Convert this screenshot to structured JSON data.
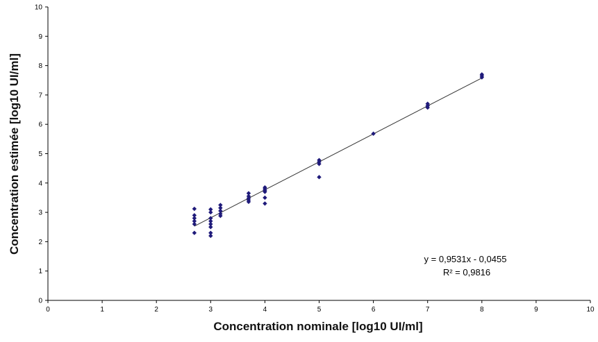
{
  "chart_data": {
    "type": "scatter",
    "title": "",
    "xlabel": "Concentration nominale [log10  UI/ml]",
    "ylabel": "Concentration estimée [log10 UI/ml]",
    "xlim": [
      0,
      10
    ],
    "ylim": [
      0,
      10
    ],
    "xticks": [
      "0",
      "1",
      "2",
      "3",
      "4",
      "5",
      "6",
      "7",
      "8",
      "9",
      "10"
    ],
    "yticks": [
      "0",
      "1",
      "2",
      "3",
      "4",
      "5",
      "6",
      "7",
      "8",
      "9",
      "10"
    ],
    "grid": false,
    "marker_color": "#1f1a7a",
    "points": [
      [
        2.7,
        3.12
      ],
      [
        2.7,
        2.9
      ],
      [
        2.7,
        2.8
      ],
      [
        2.7,
        2.7
      ],
      [
        2.7,
        2.6
      ],
      [
        2.7,
        2.3
      ],
      [
        3.0,
        3.1
      ],
      [
        3.0,
        3.0
      ],
      [
        3.0,
        2.8
      ],
      [
        3.0,
        2.7
      ],
      [
        3.0,
        2.6
      ],
      [
        3.0,
        2.5
      ],
      [
        3.0,
        2.3
      ],
      [
        3.0,
        2.2
      ],
      [
        3.18,
        3.25
      ],
      [
        3.18,
        3.15
      ],
      [
        3.18,
        3.05
      ],
      [
        3.18,
        2.95
      ],
      [
        3.18,
        2.88
      ],
      [
        3.7,
        3.65
      ],
      [
        3.7,
        3.55
      ],
      [
        3.7,
        3.48
      ],
      [
        3.7,
        3.42
      ],
      [
        3.7,
        3.36
      ],
      [
        4.0,
        3.85
      ],
      [
        4.0,
        3.8
      ],
      [
        4.0,
        3.75
      ],
      [
        4.0,
        3.7
      ],
      [
        4.0,
        3.5
      ],
      [
        4.0,
        3.3
      ],
      [
        5.0,
        4.78
      ],
      [
        5.0,
        4.72
      ],
      [
        5.0,
        4.65
      ],
      [
        5.0,
        4.2
      ],
      [
        6.0,
        5.68
      ],
      [
        7.0,
        6.7
      ],
      [
        7.0,
        6.63
      ],
      [
        7.0,
        6.57
      ],
      [
        8.0,
        7.7
      ],
      [
        8.0,
        7.65
      ],
      [
        8.0,
        7.6
      ]
    ],
    "trendline": {
      "slope": 0.9531,
      "intercept": -0.0455,
      "x_range": [
        2.7,
        8.0
      ],
      "equation": "y = 0,9531x - 0,0455",
      "r2": "R² = 0,9816"
    }
  }
}
